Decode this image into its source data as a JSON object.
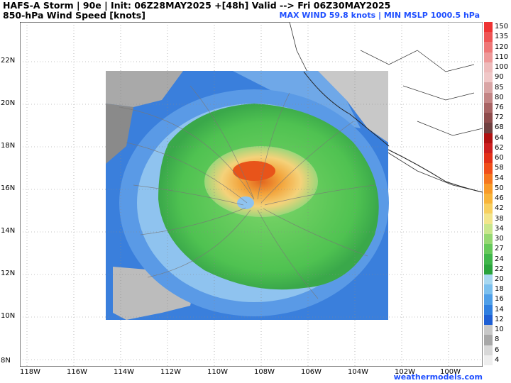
{
  "header": {
    "line1": "HAFS-A Storm | 90e | Init: 06Z28MAY2025 +[48h] Valid --> Fri 06Z30MAY2025",
    "line2": "850-hPa Wind Speed [knots]",
    "stats": "MAX WIND 59.8 knots | MIN MSLP 1000.5 hPa"
  },
  "lat_labels": [
    "22N",
    "20N",
    "18N",
    "16N",
    "14N",
    "12N",
    "10N",
    "8N"
  ],
  "lon_labels": [
    "118W",
    "116W",
    "114W",
    "112W",
    "110W",
    "108W",
    "106W",
    "104W",
    "102W",
    "100W"
  ],
  "colorbar": {
    "labels": [
      "150",
      "135",
      "120",
      "110",
      "100",
      "90",
      "85",
      "80",
      "76",
      "72",
      "68",
      "64",
      "62",
      "60",
      "58",
      "54",
      "50",
      "46",
      "42",
      "38",
      "34",
      "30",
      "27",
      "24",
      "22",
      "20",
      "18",
      "16",
      "14",
      "12",
      "10",
      "8",
      "6",
      "4"
    ],
    "colors": [
      "#e33",
      "#e55",
      "#e77",
      "#e99",
      "#ebb",
      "#f0c8c8",
      "#d9a5a5",
      "#c38585",
      "#a86464",
      "#8e4c4c",
      "#704040",
      "#b01010",
      "#cc1e1e",
      "#e23018",
      "#f04e1a",
      "#f5761e",
      "#f89a28",
      "#f8b43a",
      "#f7cf60",
      "#f2e58c",
      "#c9e68c",
      "#96d872",
      "#66c95a",
      "#3fb64a",
      "#2aa33c",
      "#a8d8f0",
      "#7cc0ee",
      "#4f9fe8",
      "#2f7fe0",
      "#1e5fd4",
      "#c8c8c8",
      "#a8a8a8",
      "#d8d8d8",
      "#eeeeee"
    ]
  },
  "credit": "weathermodels.com"
}
